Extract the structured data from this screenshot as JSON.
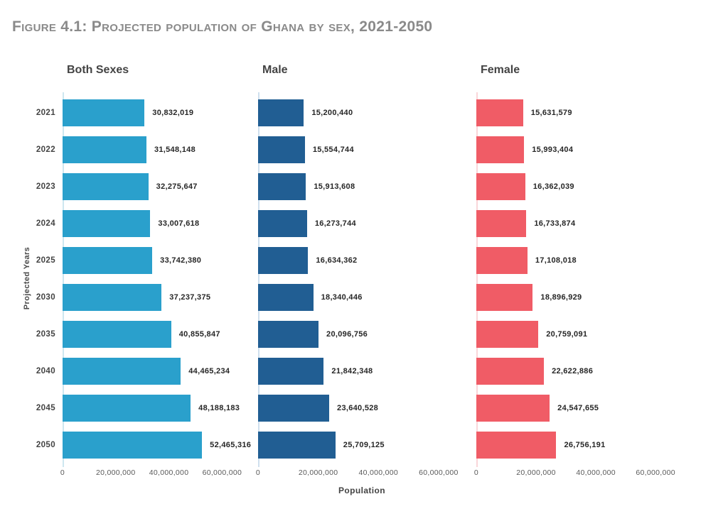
{
  "figure_title": "Figure 4.1: Projected population of Ghana by sex, 2021-2050",
  "colors": {
    "background": "#ffffff",
    "title_text": "#8a8a8a",
    "heading_text": "#434343",
    "value_label_text": "#262626",
    "tick_text": "#595959"
  },
  "chart_data": {
    "type": "bar",
    "orientation": "horizontal",
    "title": "Figure 4.1: Projected population of Ghana by sex, 2021-2050",
    "xlabel": "Population",
    "ylabel": "Projected Years",
    "categories": [
      "2021",
      "2022",
      "2023",
      "2024",
      "2025",
      "2030",
      "2035",
      "2040",
      "2045",
      "2050"
    ],
    "series": [
      {
        "name": "Both Sexes",
        "color": "#2AA0CC",
        "axis_line_color": "#CDE7F0",
        "values": [
          30832019,
          31548148,
          32275647,
          33007618,
          33742380,
          37237375,
          40855847,
          44465234,
          48188183,
          52465316
        ]
      },
      {
        "name": "Male",
        "color": "#215E93",
        "axis_line_color": "#CFE0EE",
        "values": [
          15200440,
          15554744,
          15913608,
          16273744,
          16634362,
          18340446,
          20096756,
          21842348,
          23640528,
          25709125
        ]
      },
      {
        "name": "Female",
        "color": "#F05C66",
        "axis_line_color": "#FAD6D9",
        "values": [
          15631579,
          15993404,
          16362039,
          16733874,
          17108018,
          18896929,
          20759091,
          22622886,
          24547655,
          26756191
        ]
      }
    ],
    "x_ticks": [
      "0",
      "20,000,000",
      "40,000,000",
      "60,000,000"
    ],
    "x_tick_values": [
      0,
      20000000,
      40000000,
      60000000
    ],
    "xlim": [
      0,
      69000000
    ],
    "grid": false,
    "legend": "none",
    "value_labels": "outside-end"
  }
}
